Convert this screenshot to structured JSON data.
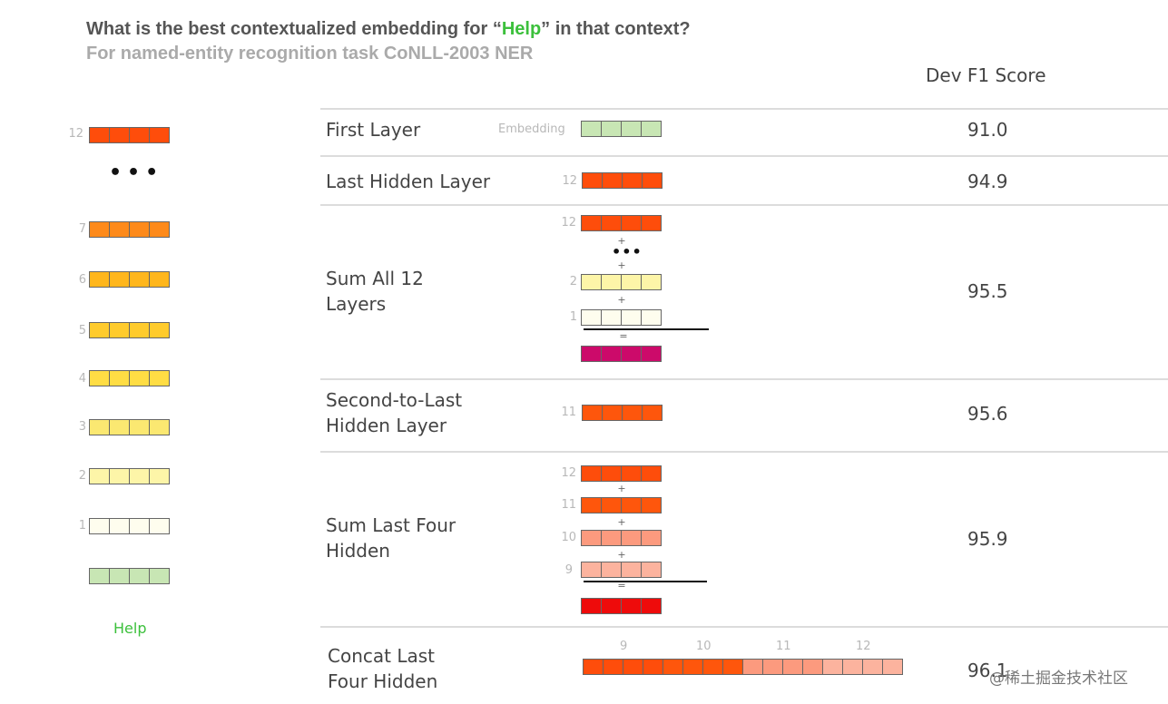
{
  "title": {
    "prefix": "What is the best contextualized embedding for “",
    "highlight": "Help",
    "suffix": "” in that context?",
    "highlight_color": "#3cc03c"
  },
  "subtitle": "For named-entity recognition task CoNLL-2003 NER",
  "score_header": "Dev F1 Score",
  "left_stack": {
    "layers": [
      {
        "label": "12",
        "color": "#fe4d0b"
      },
      {
        "label": "7",
        "color": "#fe8a1a"
      },
      {
        "label": "6",
        "color": "#ffb61c"
      },
      {
        "label": "5",
        "color": "#ffcb2c"
      },
      {
        "label": "4",
        "color": "#ffdd44"
      },
      {
        "label": "3",
        "color": "#fbe871"
      },
      {
        "label": "2",
        "color": "#fdf5a8"
      },
      {
        "label": "1",
        "color": "#fefdee"
      }
    ],
    "embedding_color": "#c8e6b4",
    "word": "Help"
  },
  "rows": [
    {
      "label": "First Layer",
      "score": "91.0",
      "vector_label": "Embedding"
    },
    {
      "label": "Last Hidden Layer",
      "score": "94.9",
      "vector_label": "12"
    },
    {
      "label": "Sum All 12\nLayers",
      "score": "95.5",
      "vector_labels": [
        "12",
        "2",
        "1"
      ]
    },
    {
      "label": "Second-to-Last\nHidden Layer",
      "score": "95.6",
      "vector_label": "11"
    },
    {
      "label": "Sum Last Four\nHidden",
      "score": "95.9",
      "vector_labels": [
        "12",
        "11",
        "10",
        "9"
      ]
    },
    {
      "label": "Concat Last\nFour Hidden",
      "score": "96.1",
      "segment_labels": [
        "9",
        "10",
        "11",
        "12"
      ]
    }
  ],
  "operators": {
    "plus": "+",
    "equals": "="
  },
  "colors": {
    "layer12": "#fe4d0b",
    "layer11": "#fe560c",
    "layer10": "#fc9a7e",
    "layer9": "#fcb39e",
    "sum_all": "#cc0a6a",
    "sum_four": "#ee0b0b",
    "embedding": "#c8e6b4"
  },
  "watermark": "@稀土掘金技术社区"
}
